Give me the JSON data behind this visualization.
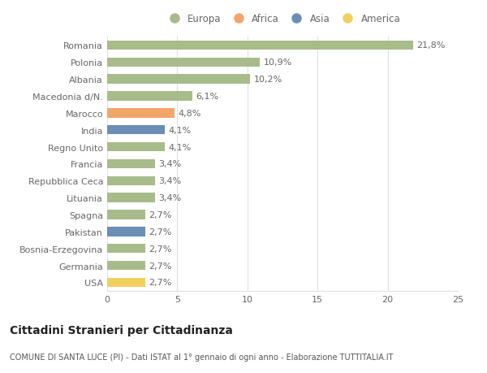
{
  "categories": [
    "Romania",
    "Polonia",
    "Albania",
    "Macedonia d/N.",
    "Marocco",
    "India",
    "Regno Unito",
    "Francia",
    "Repubblica Ceca",
    "Lituania",
    "Spagna",
    "Pakistan",
    "Bosnia-Erzegovina",
    "Germania",
    "USA"
  ],
  "values": [
    21.8,
    10.9,
    10.2,
    6.1,
    4.8,
    4.1,
    4.1,
    3.4,
    3.4,
    3.4,
    2.7,
    2.7,
    2.7,
    2.7,
    2.7
  ],
  "labels": [
    "21,8%",
    "10,9%",
    "10,2%",
    "6,1%",
    "4,8%",
    "4,1%",
    "4,1%",
    "3,4%",
    "3,4%",
    "3,4%",
    "2,7%",
    "2,7%",
    "2,7%",
    "2,7%",
    "2,7%"
  ],
  "continents": [
    "Europa",
    "Europa",
    "Europa",
    "Europa",
    "Africa",
    "Asia",
    "Europa",
    "Europa",
    "Europa",
    "Europa",
    "Europa",
    "Asia",
    "Europa",
    "Europa",
    "America"
  ],
  "continent_colors": {
    "Europa": "#a8bb8a",
    "Africa": "#f4a56a",
    "Asia": "#6b8eb5",
    "America": "#f0d060"
  },
  "legend_order": [
    "Europa",
    "Africa",
    "Asia",
    "America"
  ],
  "title": "Cittadini Stranieri per Cittadinanza",
  "subtitle": "COMUNE DI SANTA LUCE (PI) - Dati ISTAT al 1° gennaio di ogni anno - Elaborazione TUTTITALIA.IT",
  "xlim": [
    0,
    25
  ],
  "xticks": [
    0,
    5,
    10,
    15,
    20,
    25
  ],
  "background_color": "#ffffff",
  "grid_color": "#e0e0e0",
  "bar_height": 0.55,
  "label_fontsize": 8,
  "tick_fontsize": 8,
  "title_fontsize": 10,
  "subtitle_fontsize": 7
}
